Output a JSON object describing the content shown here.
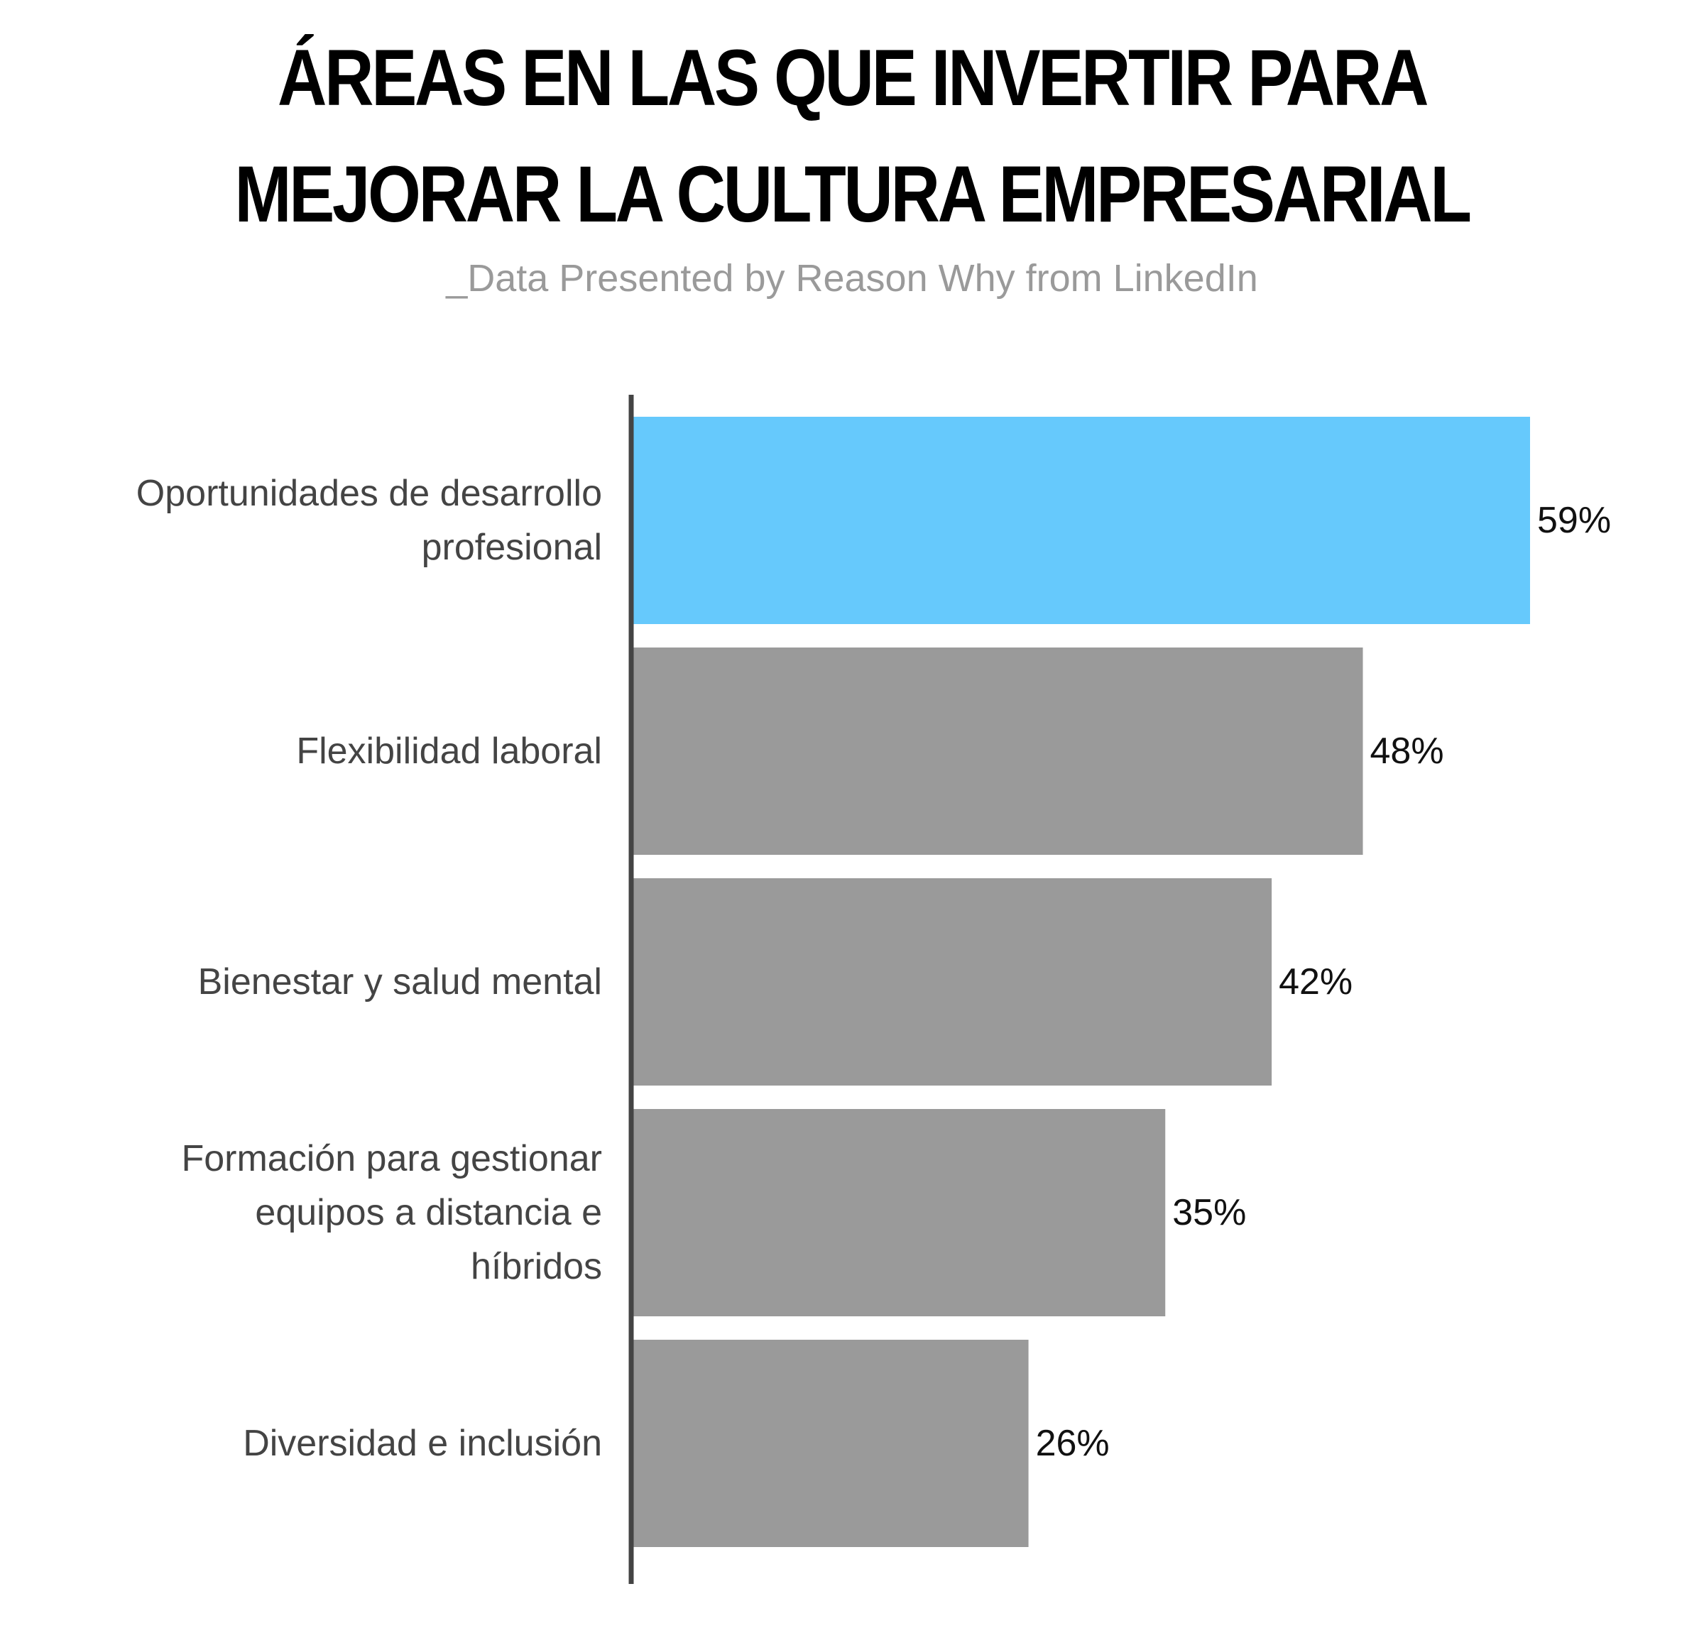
{
  "chart_data": {
    "type": "bar",
    "orientation": "horizontal",
    "title": "ÁREAS EN LAS QUE INVERTIR PARA MEJORAR LA CULTURA EMPRESARIAL",
    "subtitle": "_Data Presented by Reason Why from LinkedIn",
    "categories": [
      [
        "Oportunidades de desarrollo",
        "profesional"
      ],
      [
        "Flexibilidad laboral"
      ],
      [
        "Bienestar y salud mental"
      ],
      [
        "Formación para gestionar",
        "equipos a distancia e",
        "híbridos"
      ],
      [
        "Diversidad e inclusión"
      ]
    ],
    "values": [
      59,
      48,
      42,
      35,
      26
    ],
    "value_labels": [
      "59%",
      "48%",
      "42%",
      "35%",
      "26%"
    ],
    "unit": "%",
    "xlim": [
      0,
      59
    ],
    "grid": false,
    "legend": "none",
    "colors": {
      "highlight": "#66c9fc",
      "default": "#9a9a9a",
      "axis": "#444444"
    },
    "highlight_index": 0
  }
}
